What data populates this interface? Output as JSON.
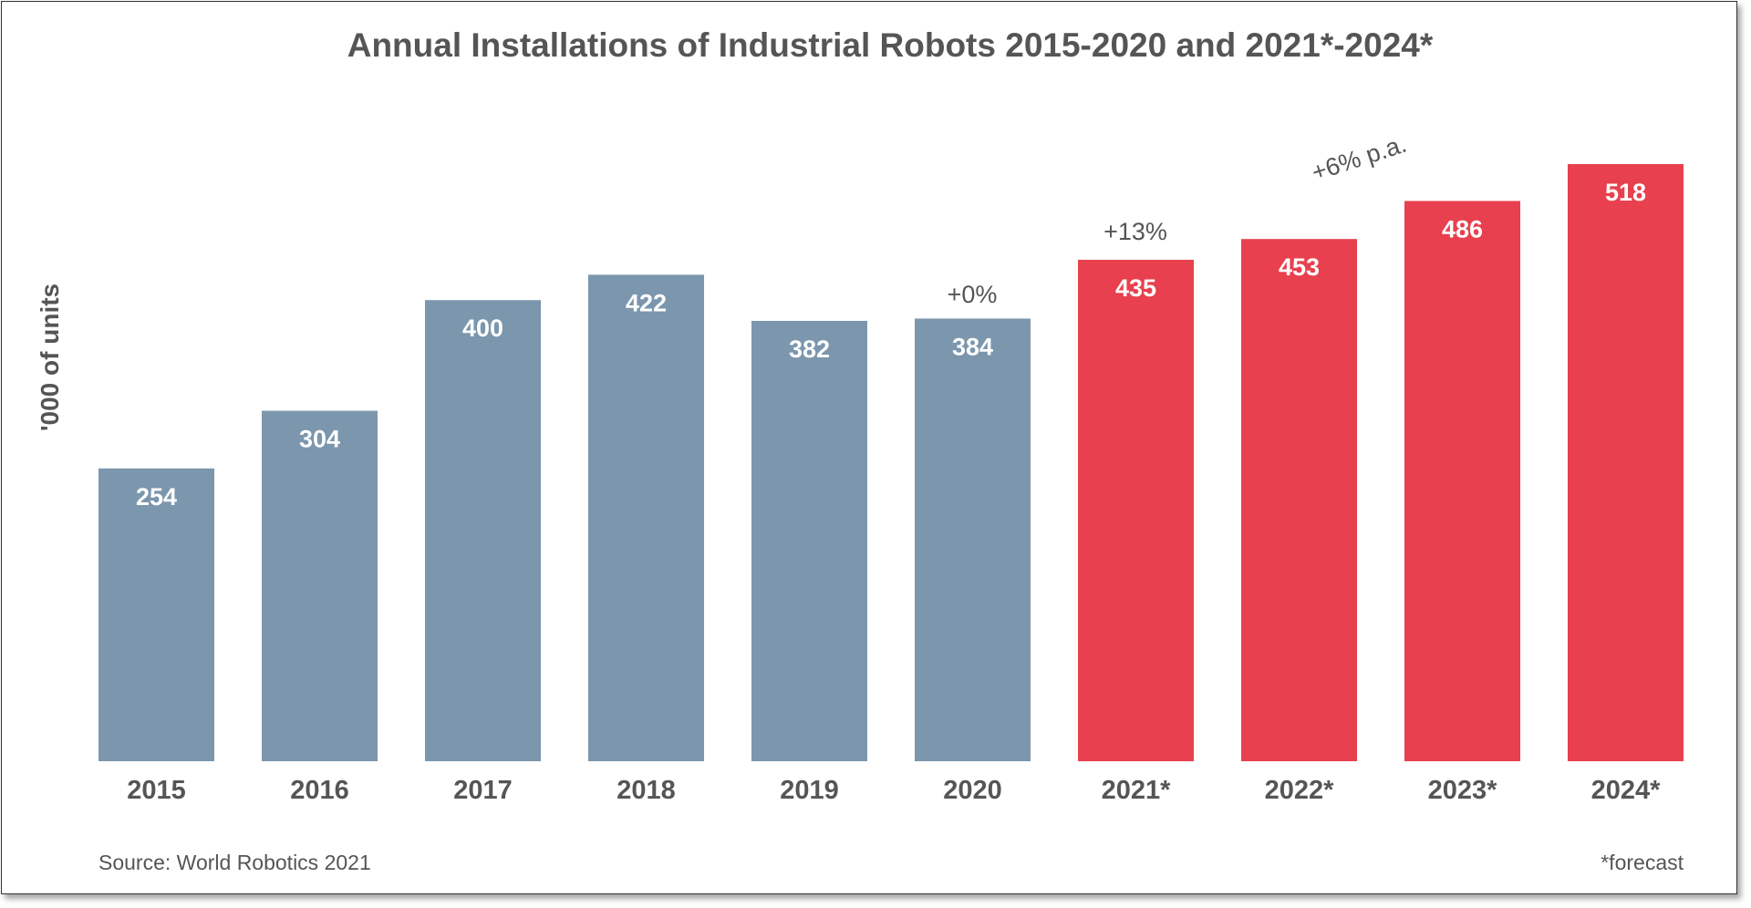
{
  "chart_data": {
    "type": "bar",
    "title": "Annual Installations of Industrial Robots 2015-2020 and 2021*-2024*",
    "ylabel": "'000 of units",
    "xlabel": "",
    "categories": [
      "2015",
      "2016",
      "2017",
      "2018",
      "2019",
      "2020",
      "2021*",
      "2022*",
      "2023*",
      "2024*"
    ],
    "values": [
      254,
      304,
      400,
      422,
      382,
      384,
      435,
      453,
      486,
      518
    ],
    "forecast": [
      false,
      false,
      false,
      false,
      false,
      false,
      true,
      true,
      true,
      true
    ],
    "ylim": [
      0,
      518
    ],
    "grid": false,
    "annotations": [
      {
        "text": "+0%",
        "category": "2020"
      },
      {
        "text": "+13%",
        "category": "2021*"
      },
      {
        "text": "+6% p.a.",
        "category": "2022*-2024*"
      }
    ],
    "source": "Source: World Robotics 2021",
    "footnote": "*forecast",
    "colors": {
      "actual": "#7b96ad",
      "forecast": "#e8404e",
      "text": "#555555"
    }
  }
}
